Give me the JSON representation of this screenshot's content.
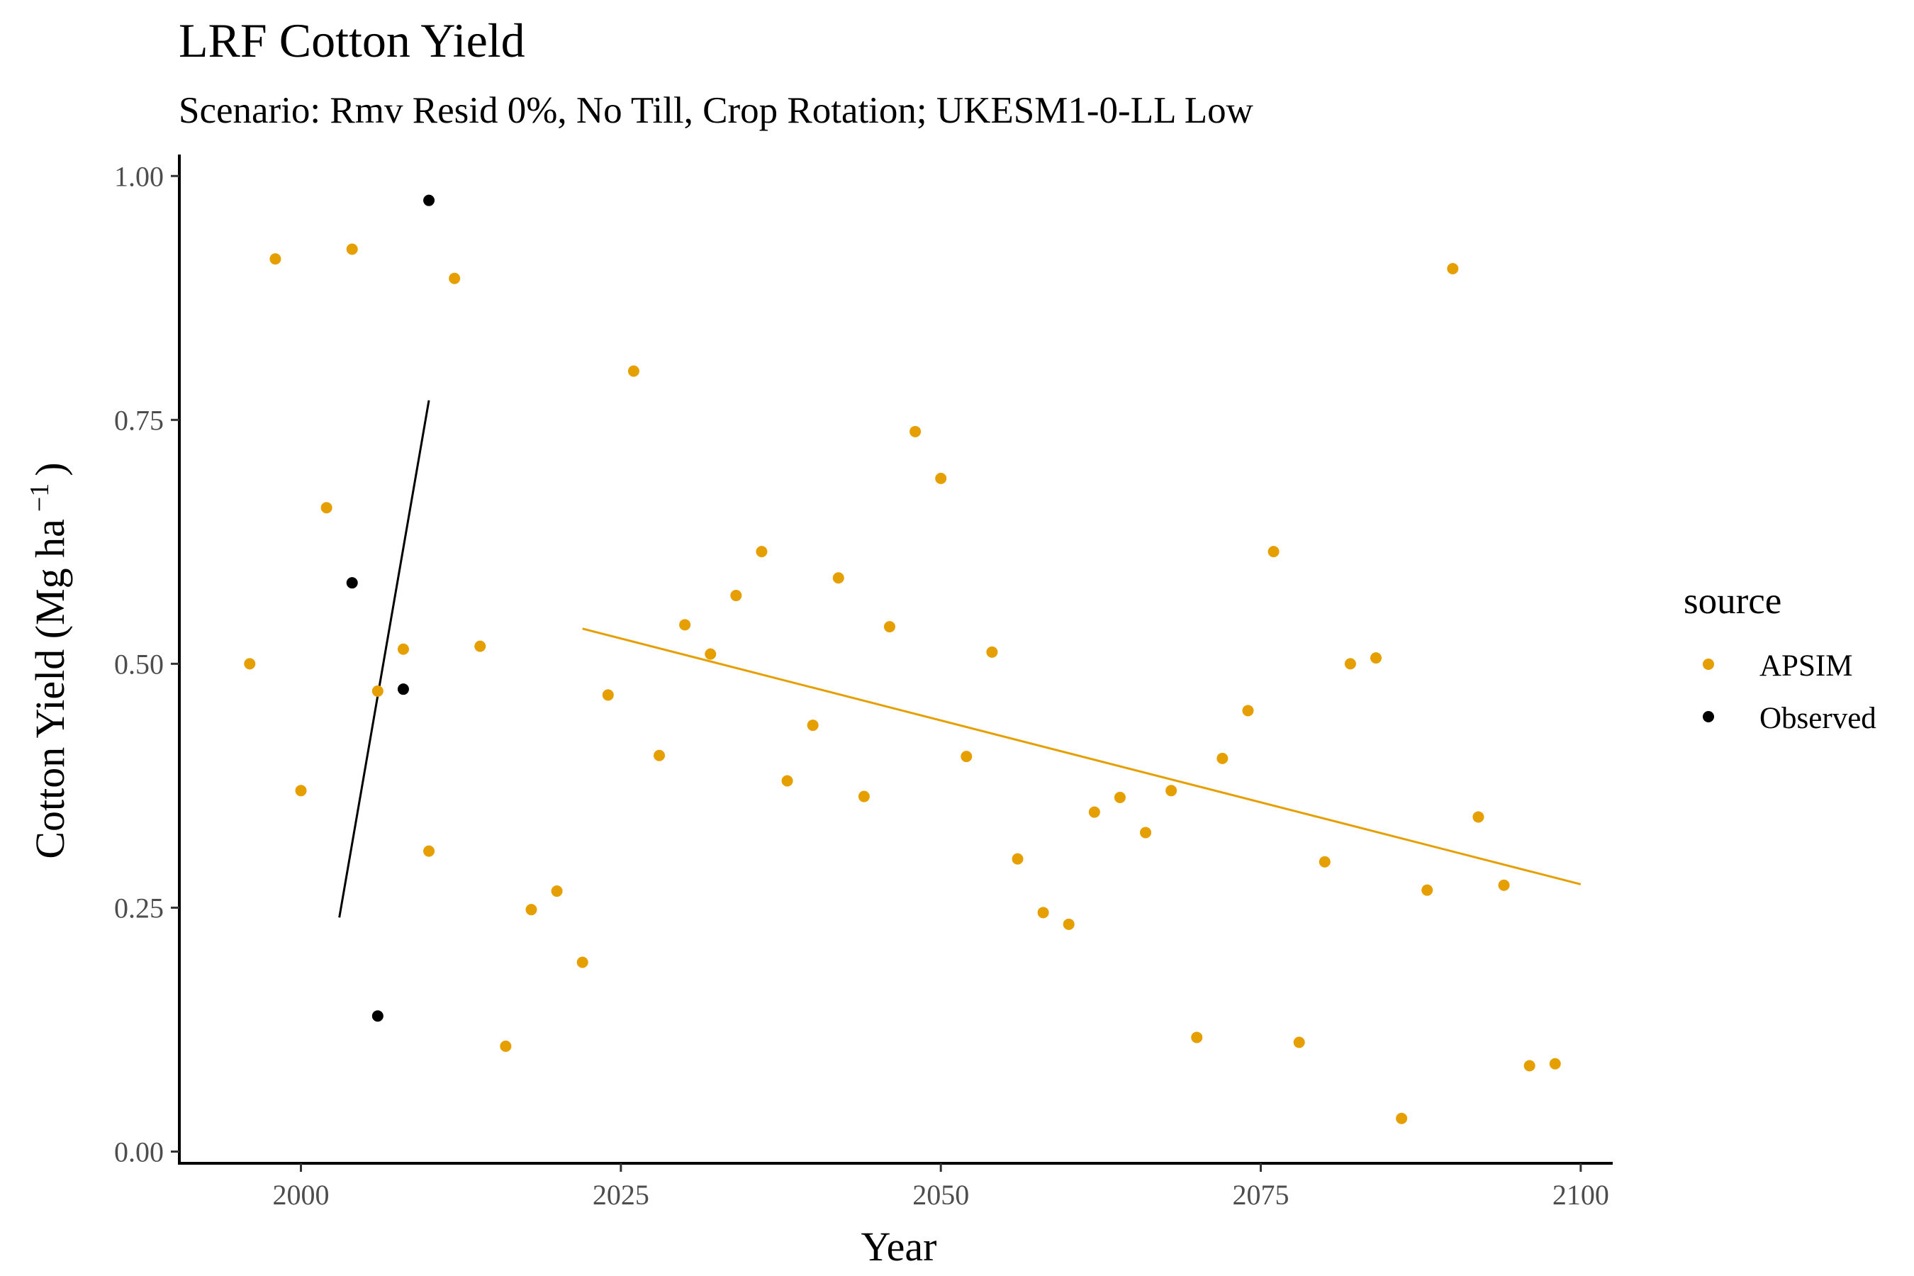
{
  "chart_data": {
    "type": "scatter",
    "title": "LRF Cotton Yield",
    "subtitle": "Scenario: Rmv Resid 0%, No Till, Crop Rotation; UKESM1-0-LL Low",
    "xlabel": "Year",
    "ylabel_main": "Cotton Yield (Mg ha",
    "ylabel_sup": "−1",
    "ylabel_close": ")",
    "xlim": [
      1990.5,
      2102.5
    ],
    "ylim": [
      -0.012,
      1.022
    ],
    "x_ticks": [
      2000,
      2025,
      2050,
      2075,
      2100
    ],
    "y_ticks": [
      0,
      0.25,
      0.5,
      0.75,
      1.0
    ],
    "y_tick_labels": [
      "0.00",
      "0.25",
      "0.50",
      "0.75",
      "1.00"
    ],
    "grid": false,
    "legend_position": "right",
    "legend_title": "source",
    "series": [
      {
        "name": "APSIM",
        "color": "#E69F00",
        "points": [
          [
            1996,
            0.5
          ],
          [
            1998,
            0.915
          ],
          [
            2000,
            0.37
          ],
          [
            2002,
            0.66
          ],
          [
            2004,
            0.925
          ],
          [
            2006,
            0.472
          ],
          [
            2008,
            0.515
          ],
          [
            2010,
            0.308
          ],
          [
            2012,
            0.895
          ],
          [
            2014,
            0.518
          ],
          [
            2016,
            0.108
          ],
          [
            2018,
            0.248
          ],
          [
            2020,
            0.267
          ],
          [
            2022,
            0.194
          ],
          [
            2024,
            0.468
          ],
          [
            2026,
            0.8
          ],
          [
            2028,
            0.406
          ],
          [
            2030,
            0.54
          ],
          [
            2032,
            0.51
          ],
          [
            2034,
            0.57
          ],
          [
            2036,
            0.615
          ],
          [
            2038,
            0.38
          ],
          [
            2040,
            0.437
          ],
          [
            2042,
            0.588
          ],
          [
            2044,
            0.364
          ],
          [
            2046,
            0.538
          ],
          [
            2048,
            0.738
          ],
          [
            2050,
            0.69
          ],
          [
            2052,
            0.405
          ],
          [
            2054,
            0.512
          ],
          [
            2056,
            0.3
          ],
          [
            2058,
            0.245
          ],
          [
            2060,
            0.233
          ],
          [
            2062,
            0.348
          ],
          [
            2064,
            0.363
          ],
          [
            2066,
            0.327
          ],
          [
            2068,
            0.37
          ],
          [
            2070,
            0.117
          ],
          [
            2072,
            0.403
          ],
          [
            2074,
            0.452
          ],
          [
            2076,
            0.615
          ],
          [
            2078,
            0.112
          ],
          [
            2080,
            0.297
          ],
          [
            2082,
            0.5
          ],
          [
            2084,
            0.506
          ],
          [
            2086,
            0.034
          ],
          [
            2088,
            0.268
          ],
          [
            2090,
            0.905
          ],
          [
            2092,
            0.343
          ],
          [
            2094,
            0.273
          ],
          [
            2096,
            0.088
          ],
          [
            2098,
            0.09
          ]
        ],
        "trend": [
          [
            2022,
            0.536
          ],
          [
            2100,
            0.274
          ]
        ]
      },
      {
        "name": "Observed",
        "color": "#000000",
        "points": [
          [
            2004,
            0.583
          ],
          [
            2006,
            0.139
          ],
          [
            2008,
            0.474
          ],
          [
            2010,
            0.975
          ]
        ],
        "trend": [
          [
            2003,
            0.24
          ],
          [
            2010,
            0.77
          ]
        ]
      }
    ]
  }
}
